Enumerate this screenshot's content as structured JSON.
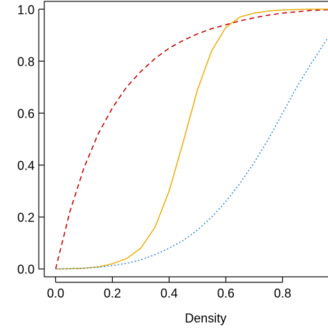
{
  "chart_data": {
    "type": "line",
    "title": "",
    "xlabel": "Density",
    "ylabel": "",
    "xlim": [
      -0.04,
      0.96
    ],
    "ylim": [
      -0.03,
      1.03
    ],
    "x_ticks": [
      "0.0",
      "0.2",
      "0.4",
      "0.6",
      "0.8"
    ],
    "y_ticks": [
      "0.0",
      "0.2",
      "0.4",
      "0.6",
      "0.8",
      "1.0"
    ],
    "grid": false,
    "legend": "none",
    "series": [
      {
        "color": "#c00000",
        "dash": "dashed",
        "x": [
          0,
          0.05,
          0.1,
          0.15,
          0.2,
          0.25,
          0.3,
          0.35,
          0.4,
          0.45,
          0.5,
          0.55,
          0.6,
          0.65,
          0.7,
          0.75,
          0.8,
          0.85,
          0.9,
          0.96
        ],
        "y": [
          0,
          0.22,
          0.39,
          0.52,
          0.62,
          0.7,
          0.76,
          0.81,
          0.85,
          0.88,
          0.905,
          0.925,
          0.94,
          0.955,
          0.967,
          0.977,
          0.985,
          0.99,
          0.995,
          0.998
        ]
      },
      {
        "color": "#e8b010",
        "dash": "solid",
        "x": [
          0,
          0.05,
          0.1,
          0.15,
          0.2,
          0.25,
          0.3,
          0.35,
          0.4,
          0.45,
          0.5,
          0.55,
          0.6,
          0.65,
          0.7,
          0.75,
          0.8,
          0.85,
          0.9,
          0.96
        ],
        "y": [
          0,
          0.001,
          0.003,
          0.008,
          0.02,
          0.04,
          0.08,
          0.16,
          0.3,
          0.49,
          0.69,
          0.84,
          0.93,
          0.97,
          0.985,
          0.993,
          0.997,
          0.999,
          1.0,
          1.0
        ]
      },
      {
        "color": "#3a88d0",
        "dash": "dotted",
        "x": [
          0,
          0.05,
          0.1,
          0.15,
          0.2,
          0.25,
          0.3,
          0.35,
          0.4,
          0.45,
          0.5,
          0.55,
          0.6,
          0.65,
          0.7,
          0.75,
          0.8,
          0.85,
          0.9,
          0.96
        ],
        "y": [
          0,
          0.001,
          0.003,
          0.007,
          0.013,
          0.022,
          0.035,
          0.055,
          0.08,
          0.11,
          0.15,
          0.2,
          0.26,
          0.33,
          0.41,
          0.5,
          0.6,
          0.7,
          0.79,
          0.89
        ]
      }
    ]
  }
}
